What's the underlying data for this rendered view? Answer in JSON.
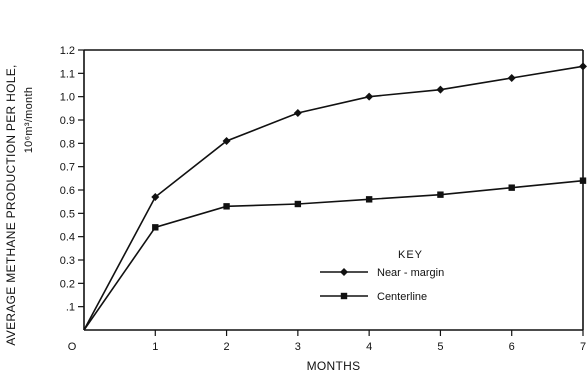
{
  "chart_data": {
    "type": "line",
    "xlabel": "MONTHS",
    "ylabel_line1": "AVERAGE METHANE PRODUCTION PER HOLE,",
    "ylabel_line2": "10⁶m³/month",
    "xlim": [
      0,
      7
    ],
    "ylim": [
      0,
      1.2
    ],
    "x_ticks": [
      0,
      1,
      2,
      3,
      4,
      5,
      6,
      7
    ],
    "x_tick_labels": [
      "0",
      "1",
      "2",
      "3",
      "4",
      "5",
      "6",
      "7"
    ],
    "y_ticks": [
      0.1,
      0.2,
      0.3,
      0.4,
      0.5,
      0.6,
      0.7,
      0.8,
      0.9,
      1.0,
      1.1,
      1.2
    ],
    "y_tick_labels": [
      ".1",
      "0.2",
      "0.3",
      "0.4",
      "0.5",
      "0.6",
      "0.7",
      "0.8",
      "0.9",
      "1.0",
      "1.1",
      "1.2"
    ],
    "x_origin_label": "O",
    "grid": false,
    "legend": {
      "title": "KEY",
      "placement": "lower-right"
    },
    "series": [
      {
        "name": "Near - margin",
        "marker": "diamond",
        "x": [
          0,
          1,
          2,
          3,
          4,
          5,
          6,
          7
        ],
        "y": [
          0,
          0.57,
          0.81,
          0.93,
          1.0,
          1.03,
          1.08,
          1.13
        ]
      },
      {
        "name": "Centerline",
        "marker": "square",
        "x": [
          0,
          1,
          2,
          3,
          4,
          5,
          6,
          7
        ],
        "y": [
          0,
          0.44,
          0.53,
          0.54,
          0.56,
          0.58,
          0.61,
          0.64
        ]
      }
    ]
  }
}
